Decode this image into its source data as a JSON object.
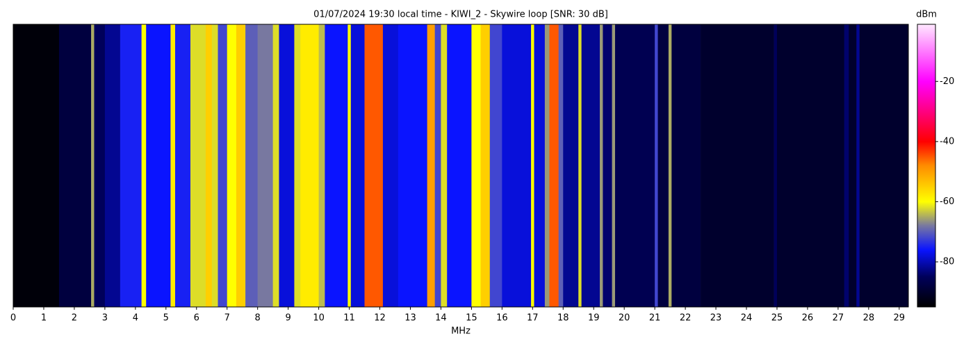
{
  "chart_data": {
    "type": "spectrogram",
    "title": "01/07/2024 19:30 local time - KIWI_2 - Skywire loop [SNR: 30 dB]",
    "xlabel": "MHz",
    "colorbar_label": "dBm",
    "x": [
      0,
      1.5,
      2.55,
      2.65,
      3.0,
      3.5,
      4.2,
      4.35,
      5.15,
      5.3,
      5.8,
      6.3,
      6.5,
      6.7,
      7.0,
      7.3,
      7.6,
      8.0,
      8.5,
      8.7,
      9.2,
      9.4,
      10.0,
      10.2,
      10.95,
      11.05,
      11.5,
      12.1,
      12.6,
      13.55,
      13.8,
      14.0,
      14.2,
      15.0,
      15.3,
      15.6,
      16.0,
      16.95,
      17.05,
      17.4,
      17.55,
      17.85,
      18.0,
      18.5,
      18.6,
      19.2,
      19.3,
      19.6,
      19.7,
      21.0,
      21.1,
      21.45,
      21.55,
      22.5,
      24.9,
      25.0,
      27.2,
      27.35,
      27.6,
      27.7
    ],
    "values": [
      -94,
      -88,
      -65,
      -85,
      -82,
      -75,
      -60,
      -76,
      -58,
      -75,
      -62,
      -55,
      -62,
      -72,
      -60,
      -55,
      -70,
      -68,
      -62,
      -78,
      -62,
      -58,
      -64,
      -76,
      -60,
      -78,
      -45,
      -78,
      -76,
      -50,
      -72,
      -62,
      -76,
      -60,
      -55,
      -72,
      -78,
      -60,
      -78,
      -66,
      -45,
      -70,
      -82,
      -62,
      -82,
      -66,
      -84,
      -66,
      -86,
      -72,
      -88,
      -65,
      -88,
      -90,
      -85,
      -90,
      -84,
      -90,
      -82,
      -90
    ],
    "xlim": [
      0,
      29.3
    ],
    "xticks": [
      0,
      1,
      2,
      3,
      4,
      5,
      6,
      7,
      8,
      9,
      10,
      11,
      12,
      13,
      14,
      15,
      16,
      17,
      18,
      19,
      20,
      21,
      22,
      23,
      24,
      25,
      26,
      27,
      28,
      29
    ],
    "clim": [
      -95,
      -1
    ],
    "cticks": [
      -20,
      -40,
      -60,
      -80
    ],
    "colormap": [
      {
        "value": -95,
        "color": "#000000"
      },
      {
        "value": -85,
        "color": "#00005a"
      },
      {
        "value": -76,
        "color": "#0a14ff"
      },
      {
        "value": -68,
        "color": "#7878a0"
      },
      {
        "value": -60,
        "color": "#ffff00"
      },
      {
        "value": -48,
        "color": "#ff8c00"
      },
      {
        "value": -40,
        "color": "#ff0000"
      },
      {
        "value": -20,
        "color": "#ff00ff"
      },
      {
        "value": -1,
        "color": "#ffe8ff"
      }
    ]
  }
}
